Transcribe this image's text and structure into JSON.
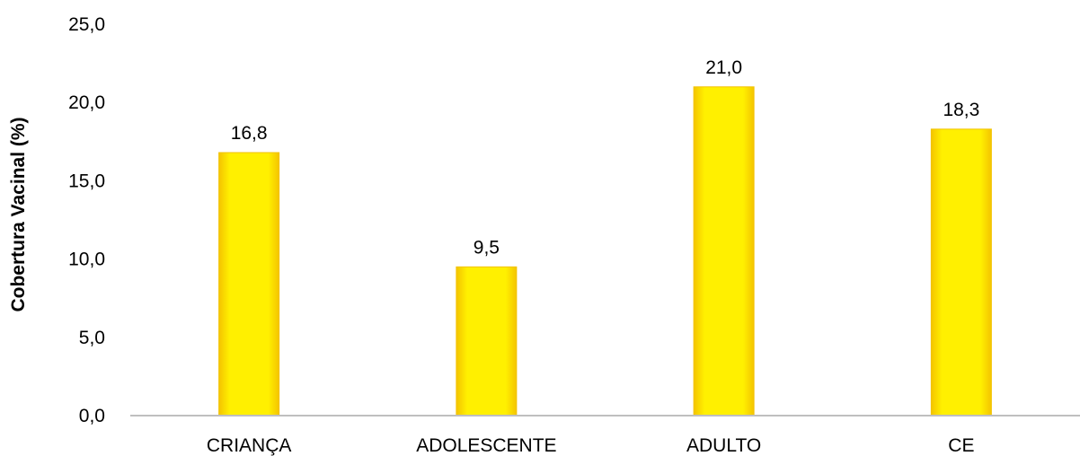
{
  "chart_data": {
    "type": "bar",
    "title": "",
    "xlabel": "",
    "ylabel": "Cobertura Vacinal (%)",
    "categories": [
      "CRIANÇA",
      "ADOLESCENTE",
      "ADULTO",
      "CE"
    ],
    "values": [
      16.8,
      9.5,
      21.0,
      18.3
    ],
    "value_labels": [
      "16,8",
      "9,5",
      "21,0",
      "18,3"
    ],
    "ylim": [
      0,
      25
    ],
    "yticks": [
      0,
      5,
      10,
      15,
      20,
      25
    ],
    "ytick_labels": [
      "0,0",
      "5,0",
      "10,0",
      "15,0",
      "20,0",
      "25,0"
    ],
    "grid": false,
    "legend": "none",
    "colors": {
      "bar_fill": "#FFF200",
      "bar_edge": "#F2C200",
      "axis_line": "#BFBFBF"
    }
  }
}
